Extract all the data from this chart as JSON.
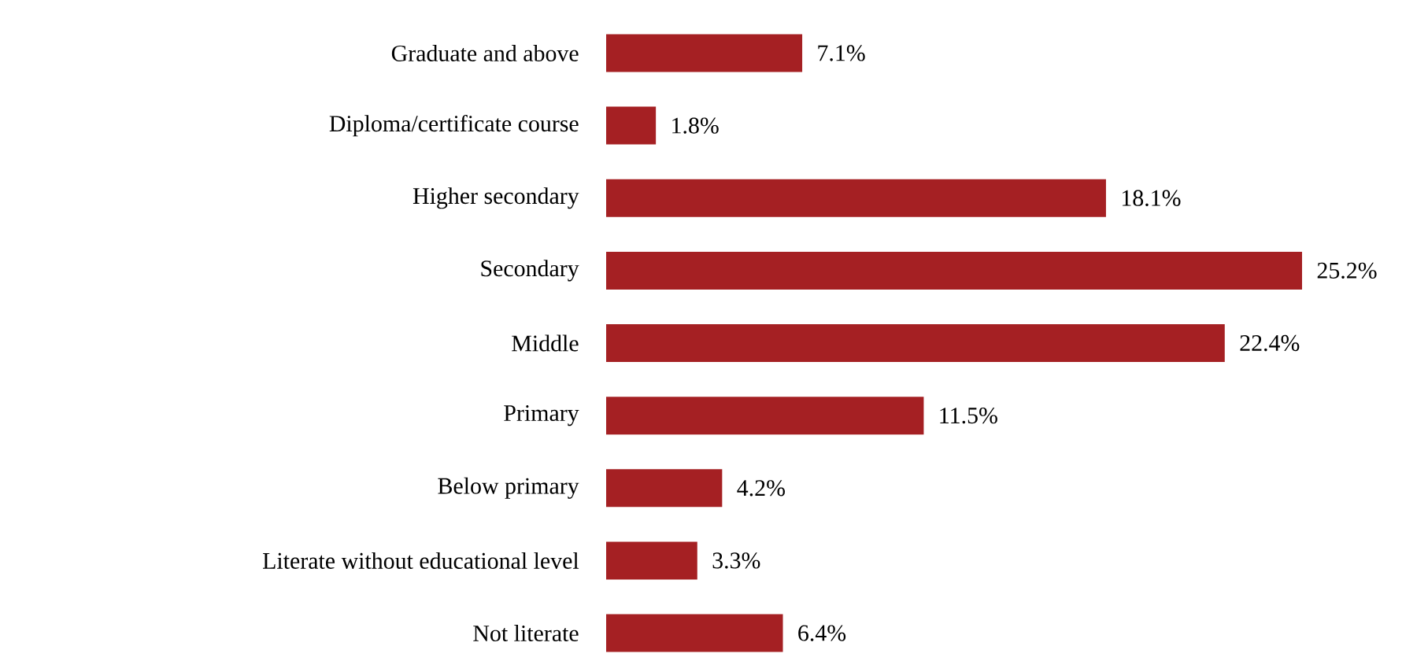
{
  "chart_data": {
    "type": "bar",
    "orientation": "horizontal",
    "categories": [
      "Graduate and above",
      "Diploma/certificate course",
      "Higher secondary",
      "Secondary",
      "Middle",
      "Primary",
      "Below primary",
      "Literate without educational level",
      "Not literate"
    ],
    "values": [
      7.1,
      1.8,
      18.1,
      25.2,
      22.4,
      11.5,
      4.2,
      3.3,
      6.4
    ],
    "value_labels": [
      "7.1%",
      "1.8%",
      "18.1%",
      "25.2%",
      "22.4%",
      "11.5%",
      "4.2%",
      "3.3%",
      "6.4%"
    ],
    "color": "#a52023"
  }
}
